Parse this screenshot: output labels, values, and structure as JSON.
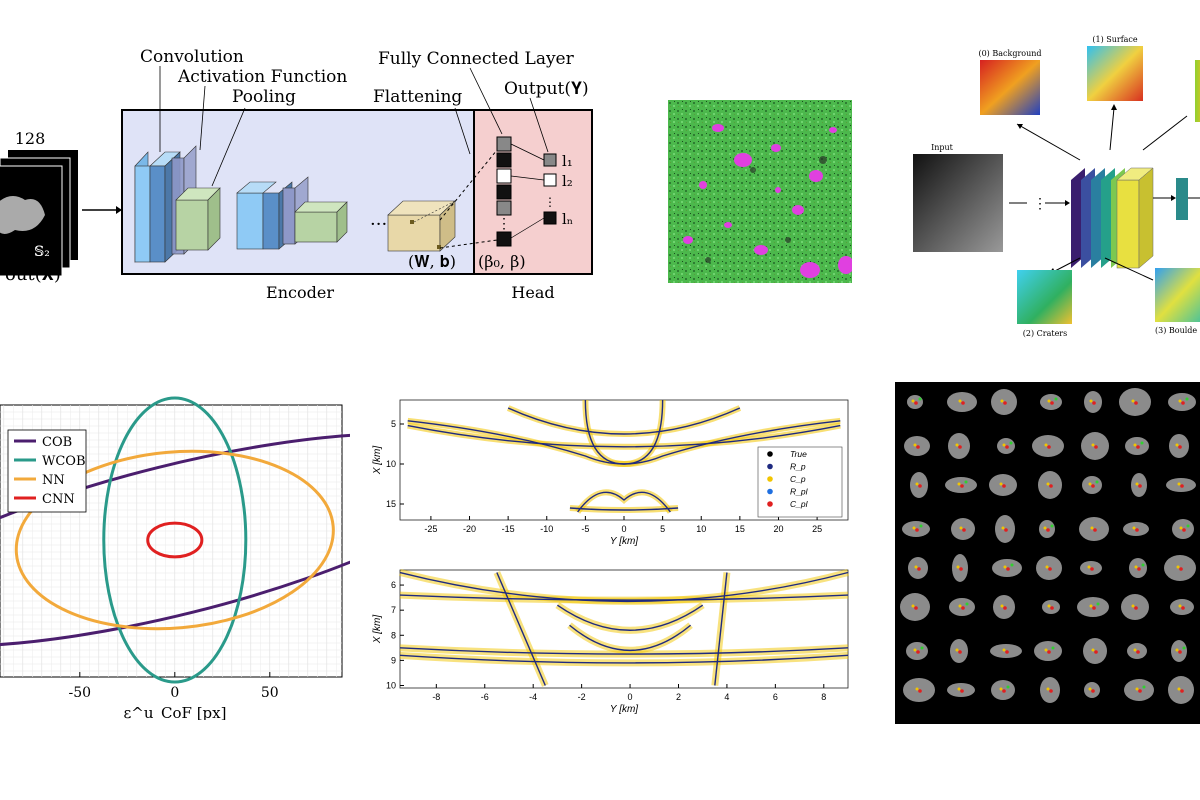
{
  "cnn_diagram": {
    "input_size": "128",
    "input_symbol": "𝕊₂",
    "input_label": "out(𝐗)",
    "convolution": "Convolution",
    "activation": "Activation Function",
    "pooling": "Pooling",
    "flattening": "Flattening",
    "fc_layer": "Fully Connected Layer",
    "output": "Output(𝐘)",
    "encoder": "Encoder",
    "head": "Head",
    "weights": "(𝐖, 𝐛)",
    "head_params": "(β₀, β)",
    "l1": "l₁",
    "l2": "l₂",
    "ln": "lₙ",
    "colors": {
      "encoder_bg": "#dfe3f7",
      "head_bg": "#f5cfcf"
    }
  },
  "segmentation_diagram": {
    "input": "Input",
    "background": "(0) Background",
    "surface": "(1) Surface",
    "craters": "(2) Craters",
    "boulders": "(3) Boulde"
  },
  "ellipse_chart": {
    "chart_data": {
      "type": "line",
      "xlabel": "ε^u_CoF [px]",
      "xticks": [
        -50,
        0,
        50
      ],
      "xlim": [
        -92,
        88
      ],
      "legend_position": "top-left",
      "grid": true,
      "series": [
        {
          "name": "COB",
          "center": [
            0,
            0
          ],
          "semi_axes": [
            95,
            22
          ],
          "angle_deg": 14,
          "color": "#4b1e6e"
        },
        {
          "name": "WCOB",
          "center": [
            0,
            0
          ],
          "semi_axes": [
            21,
            42
          ],
          "angle_deg": 0,
          "color": "#2a9a8a"
        },
        {
          "name": "NN",
          "center": [
            0,
            0
          ],
          "semi_axes": [
            47,
            26
          ],
          "angle_deg": 5,
          "color": "#f2a93b"
        },
        {
          "name": "CNN",
          "center": [
            0,
            0
          ],
          "semi_axes": [
            8,
            5
          ],
          "angle_deg": 0,
          "color": "#e02020"
        }
      ]
    }
  },
  "track_plots": {
    "chart_data": [
      {
        "type": "scatter",
        "xlabel": "Y [km]",
        "ylabel": "X [km]",
        "xticks": [
          -25,
          -20,
          -15,
          -10,
          -5,
          0,
          5,
          10,
          15,
          20,
          25
        ],
        "yticks": [
          5,
          10,
          15
        ],
        "xlim": [
          -29,
          29
        ],
        "ylim": [
          17,
          2
        ],
        "legend_position": "right",
        "series": [
          {
            "name": "True",
            "color": "#000000"
          },
          {
            "name": "R_p",
            "color": "#1f2a80"
          },
          {
            "name": "C_p",
            "color": "#f2c500"
          },
          {
            "name": "R_pl",
            "color": "#1f6fe0"
          },
          {
            "name": "C_pl",
            "color": "#e02020"
          }
        ]
      },
      {
        "type": "scatter",
        "xlabel": "Y [km]",
        "ylabel": "X [km]",
        "xticks": [
          -8,
          -6,
          -4,
          -2,
          0,
          2,
          4,
          6,
          8
        ],
        "yticks": [
          6,
          7,
          8,
          9,
          10
        ],
        "xlim": [
          -9.5,
          9
        ],
        "ylim": [
          10.1,
          5.4
        ]
      }
    ]
  }
}
